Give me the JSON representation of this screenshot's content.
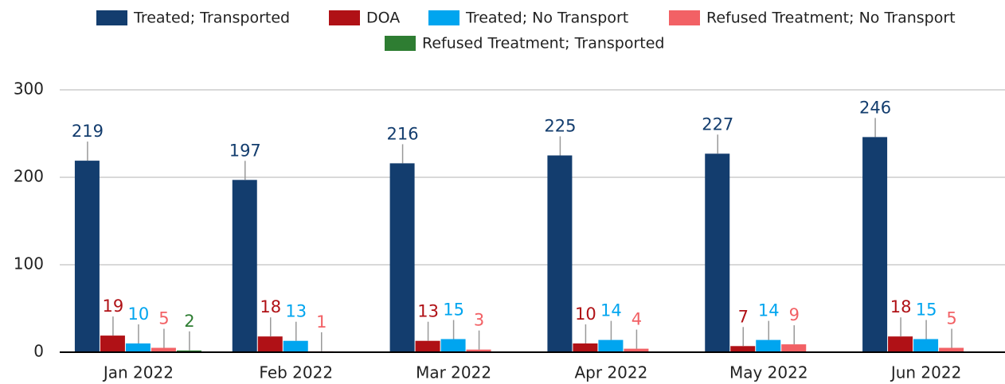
{
  "chart_data": {
    "type": "bar",
    "categories": [
      "Jan 2022",
      "Feb 2022",
      "Mar 2022",
      "Apr 2022",
      "May 2022",
      "Jun 2022"
    ],
    "series": [
      {
        "name": "Treated; Transported",
        "color": "#133d6e",
        "values": [
          219,
          197,
          216,
          225,
          227,
          246
        ]
      },
      {
        "name": "DOA",
        "color": "#b01116",
        "values": [
          19,
          18,
          13,
          10,
          7,
          18
        ]
      },
      {
        "name": "Treated; No Transport",
        "color": "#00a5ef",
        "values": [
          10,
          13,
          15,
          14,
          14,
          15
        ]
      },
      {
        "name": "Refused Treatment; No Transport",
        "color": "#f26165",
        "values": [
          5,
          1,
          3,
          4,
          9,
          5
        ]
      },
      {
        "name": "Refused Treatment; Transported",
        "color": "#2e7d32",
        "values": [
          2,
          null,
          null,
          null,
          null,
          null
        ]
      }
    ],
    "ylim": [
      0,
      300
    ],
    "yticks": [
      0,
      100,
      200,
      300
    ],
    "grid": true,
    "legend": "top"
  }
}
